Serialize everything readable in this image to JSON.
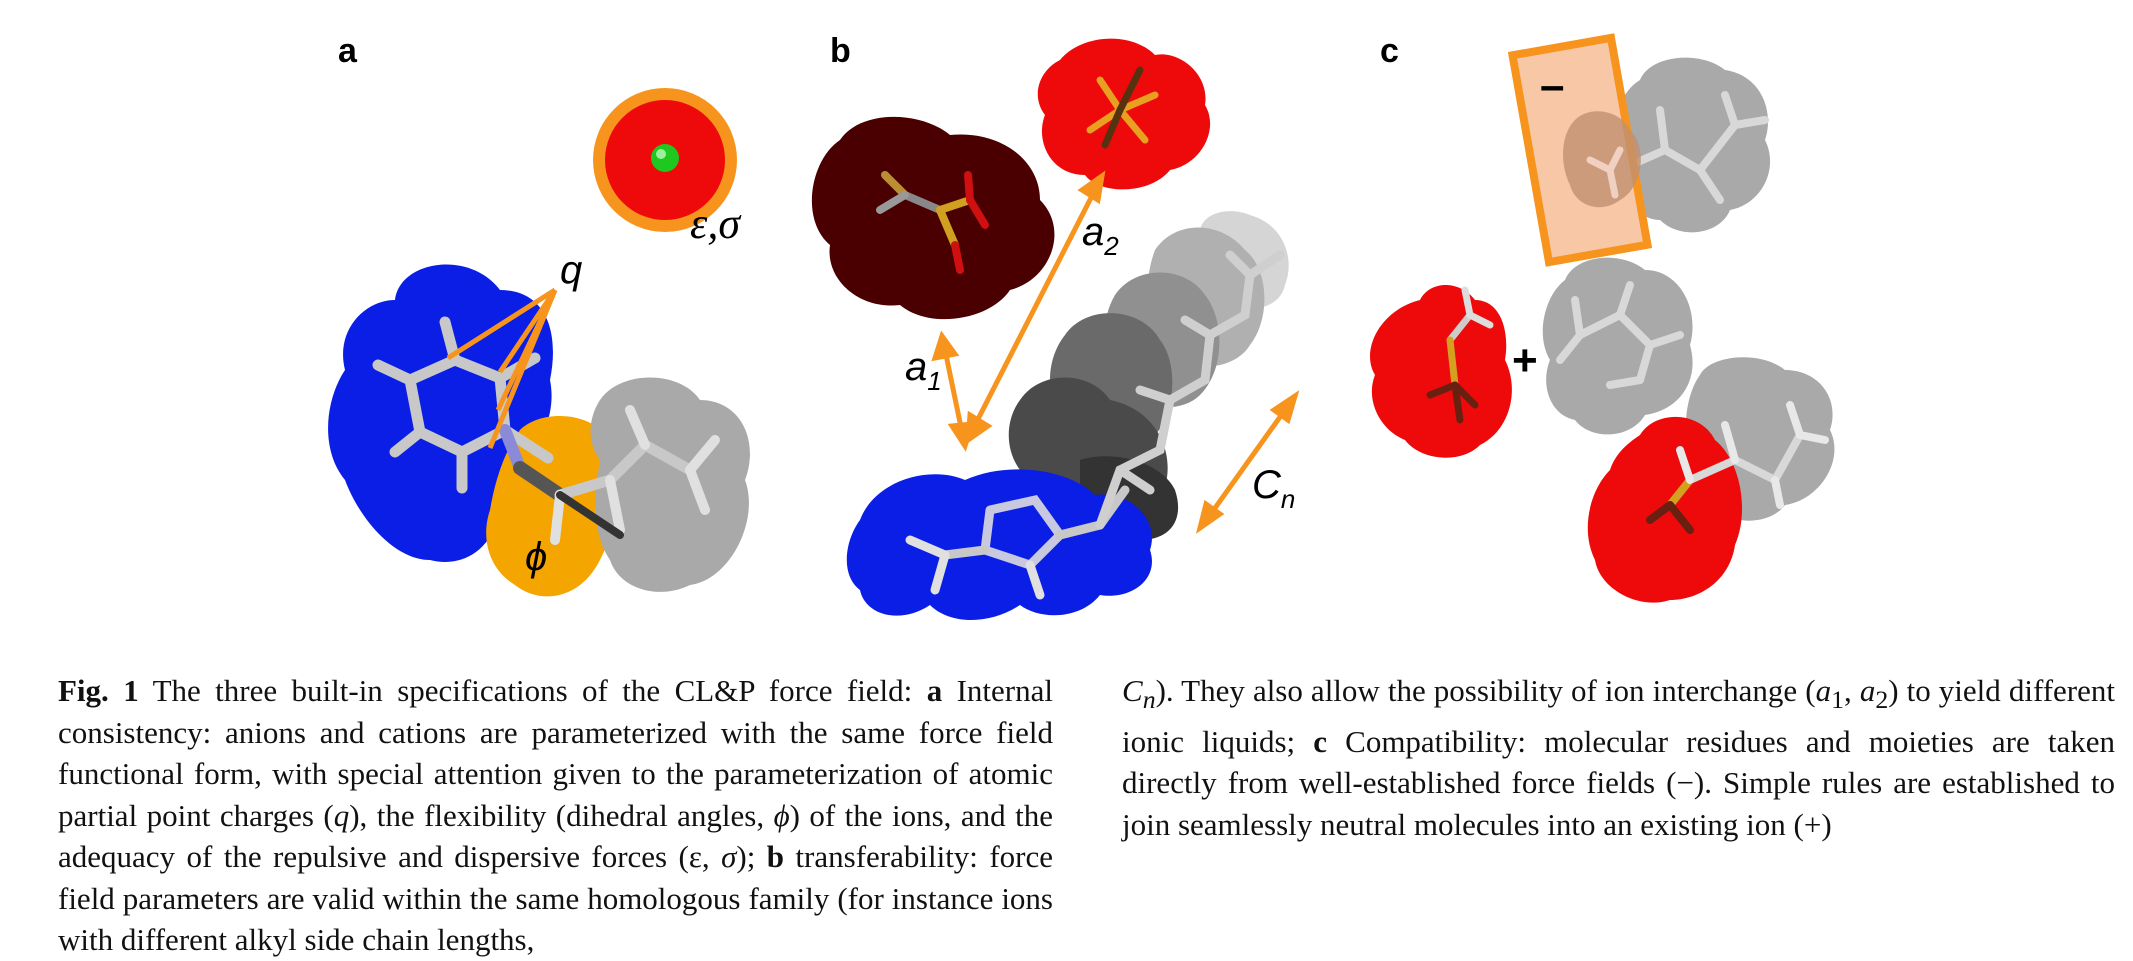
{
  "panels": {
    "a": {
      "label": "a",
      "charge_label": "q",
      "dihedral_label": "ϕ",
      "lj_label": "ε,σ"
    },
    "b": {
      "label": "b",
      "a1_base": "a",
      "a1_sub": "1",
      "a2_base": "a",
      "a2_sub": "2",
      "cn_base": "C",
      "cn_sub": "n"
    },
    "c": {
      "label": "c",
      "minus_label": "–",
      "plus_label": "+"
    }
  },
  "colors": {
    "cation_blue": "#0a1ee6",
    "anion_red": "#ee0a0a",
    "dark_anion": "#4a0000",
    "highlight_orange": "#f7941d",
    "alkyl_gray": "#a9a9a9",
    "dihedral_yellow": "#f5a500"
  },
  "caption": {
    "fig_label": "Fig. 1",
    "intro": " The three built-in specifications of the CL&P force field: ",
    "a_label": "a",
    "a_text_1": " Internal consistency: anions and cations are parameterized with the same force field functional form, with special attention given to the parameterization of atomic partial point charges (",
    "q": "q",
    "a_text_2": "), the flexibility (dihedral angles, ",
    "phi": "ϕ",
    "a_text_3": ") of the ions, and the adequacy of the repulsive and dispersive forces (ε, ",
    "sigma": "σ",
    "a_text_4": "); ",
    "b_label": "b",
    "b_text_1": " transferability: force field parameters are valid within the same homologous family (for instance ions with different alkyl side chain lengths, ",
    "cn_base": "C",
    "cn_sub": "n",
    "b_text_2": "). They also allow the possibility of ion interchange (",
    "a1_base": "a",
    "a1_sub": "1",
    "comma": ", ",
    "a2_base": "a",
    "a2_sub": "2",
    "b_text_3": ") to yield different ionic liquids; ",
    "c_label": "c",
    "c_text": " Compatibility: molecular residues and moieties are taken directly from well-established force fields (−). Simple rules are established to join seamlessly neutral molecules into an existing ion (+)"
  }
}
